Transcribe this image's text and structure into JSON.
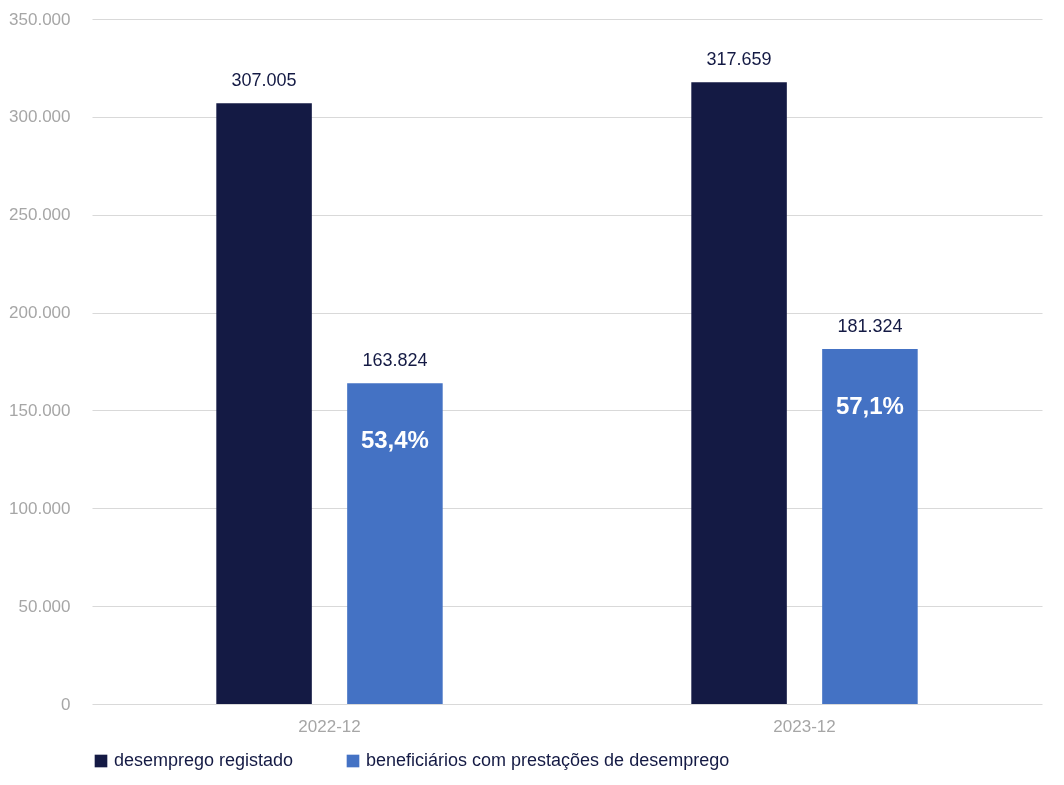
{
  "chart_data": {
    "type": "bar",
    "categories": [
      "2022-12",
      "2023-12"
    ],
    "series": [
      {
        "name": "desemprego registado",
        "color": "#141a44",
        "values": [
          307005,
          317659
        ],
        "value_labels": [
          "307.005",
          "317.659"
        ]
      },
      {
        "name": "beneficiários com prestações de desemprego",
        "color": "#4472c4",
        "values": [
          163824,
          181324
        ],
        "value_labels": [
          "163.824",
          "181.324"
        ]
      }
    ],
    "annotations": [
      "53,4%",
      "57,1%"
    ],
    "ylim": [
      0,
      350000
    ],
    "yticks": [
      0,
      {
        "value": 50000,
        "label": "50.000"
      },
      {
        "value": 100000,
        "label": "100.000"
      },
      {
        "value": 150000,
        "label": "150.000"
      },
      {
        "value": 200000,
        "label": "200.000"
      },
      {
        "value": 250000,
        "label": "250.000"
      },
      {
        "value": 300000,
        "label": "300.000"
      },
      {
        "value": 350000,
        "label": "350.000"
      }
    ],
    "grid": "y",
    "legend": "bottom"
  }
}
